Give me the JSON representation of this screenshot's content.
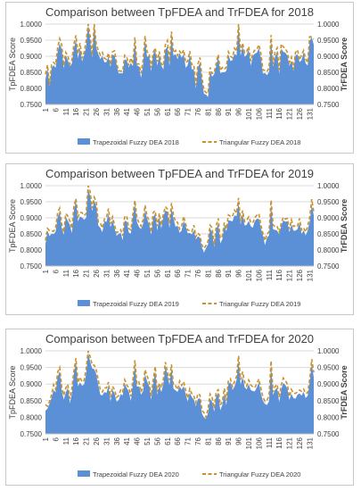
{
  "colors": {
    "trapezoidal": "#5b8fd6",
    "triangular": "#c8922e",
    "axis_text": "#404040",
    "grid": "#d9d9d9",
    "border": "#c8c8c8"
  },
  "chart_data": [
    {
      "type": "area",
      "title": "Comparison between TpFDEA and TrFDEA for 2018",
      "ylabel_left": "TpFDEA Score",
      "ylabel_right": "TrFDEA Score",
      "ylim": [
        0.75,
        1.0
      ],
      "yticks": [
        "1.0000",
        "0.9500",
        "0.9000",
        "0.8500",
        "0.8000",
        "0.7500"
      ],
      "x_ticks": [
        "1",
        "6",
        "11",
        "16",
        "21",
        "26",
        "31",
        "36",
        "41",
        "46",
        "51",
        "56",
        "61",
        "66",
        "71",
        "76",
        "81",
        "86",
        "91",
        "96",
        "101",
        "106",
        "111",
        "116",
        "121",
        "126",
        "131"
      ],
      "x_count": 133,
      "legend_position": "bottom",
      "series": [
        {
          "name": "Trapezoidal Fuzzy DEA 2018",
          "style": "area",
          "values": [
            0.828,
            0.864,
            0.806,
            0.864,
            0.872,
            0.864,
            0.913,
            0.94,
            0.922,
            0.862,
            0.903,
            0.888,
            0.868,
            0.877,
            0.924,
            0.951,
            0.893,
            0.926,
            0.884,
            0.903,
            0.931,
            0.999,
            0.946,
            0.895,
            1.0,
            0.926,
            0.907,
            0.891,
            0.901,
            0.881,
            0.882,
            0.899,
            0.867,
            0.905,
            0.902,
            0.874,
            0.847,
            0.847,
            0.847,
            0.891,
            0.887,
            0.865,
            0.88,
            0.869,
            0.944,
            0.872,
            0.868,
            0.833,
            0.871,
            0.952,
            0.897,
            0.903,
            0.853,
            0.906,
            0.918,
            0.871,
            0.902,
            0.871,
            0.859,
            0.92,
            0.931,
            0.869,
            0.963,
            0.902,
            0.907,
            0.891,
            0.91,
            0.895,
            0.907,
            0.864,
            0.873,
            0.903,
            0.859,
            0.86,
            0.8,
            0.865,
            0.88,
            0.826,
            0.783,
            0.781,
            0.773,
            0.854,
            0.836,
            0.844,
            0.869,
            0.899,
            0.847,
            0.85,
            0.85,
            0.854,
            0.905,
            0.885,
            0.888,
            0.908,
            0.902,
            0.996,
            0.901,
            0.931,
            0.898,
            0.905,
            0.922,
            0.87,
            0.901,
            0.908,
            0.911,
            0.925,
            0.893,
            0.846,
            0.848,
            0.841,
            0.851,
            0.954,
            0.868,
            0.898,
            0.916,
            0.844,
            0.924,
            0.914,
            0.911,
            0.902,
            0.87,
            0.886,
            0.854,
            0.903,
            0.906,
            0.882,
            0.888,
            0.912,
            0.878,
            0.871,
            0.948,
            0.959,
            0.936
          ]
        },
        {
          "name": "Triangular Fuzzy DEA 2018",
          "style": "dashed",
          "values": [
            0.844,
            0.873,
            0.811,
            0.873,
            0.881,
            0.874,
            0.927,
            0.955,
            0.936,
            0.871,
            0.912,
            0.901,
            0.875,
            0.888,
            0.938,
            0.965,
            0.908,
            0.941,
            0.893,
            0.912,
            0.947,
            1.0,
            0.962,
            0.903,
            1.0,
            0.936,
            0.919,
            0.904,
            0.912,
            0.894,
            0.89,
            0.91,
            0.873,
            0.914,
            0.917,
            0.88,
            0.855,
            0.854,
            0.854,
            0.903,
            0.898,
            0.871,
            0.895,
            0.876,
            0.959,
            0.876,
            0.876,
            0.847,
            0.886,
            0.963,
            0.913,
            0.91,
            0.864,
            0.912,
            0.926,
            0.883,
            0.915,
            0.876,
            0.87,
            0.936,
            0.949,
            0.883,
            0.977,
            0.911,
            0.918,
            0.902,
            0.916,
            0.906,
            0.92,
            0.88,
            0.885,
            0.916,
            0.874,
            0.874,
            0.81,
            0.876,
            0.896,
            0.834,
            0.794,
            0.787,
            0.784,
            0.865,
            0.846,
            0.849,
            0.878,
            0.905,
            0.855,
            0.865,
            0.858,
            0.867,
            0.914,
            0.9,
            0.895,
            0.925,
            0.915,
            1.0,
            0.914,
            0.941,
            0.91,
            0.915,
            0.93,
            0.885,
            0.909,
            0.919,
            0.921,
            0.936,
            0.909,
            0.857,
            0.856,
            0.852,
            0.864,
            0.966,
            0.875,
            0.914,
            0.926,
            0.857,
            0.938,
            0.929,
            0.925,
            0.912,
            0.881,
            0.897,
            0.859,
            0.912,
            0.92,
            0.888,
            0.904,
            0.918,
            0.892,
            0.88,
            0.961,
            0.96,
            0.954
          ]
        }
      ]
    },
    {
      "type": "area",
      "title": "Comparison between TpFDEA and TrFDEA for 2019",
      "ylabel_left": "TpFDEA Score",
      "ylabel_right": "TrFDEA Score",
      "ylim": [
        0.75,
        1.0
      ],
      "yticks": [
        "1.0000",
        "0.9500",
        "0.9000",
        "0.8500",
        "0.8000",
        "0.7500"
      ],
      "x_ticks": [
        "1",
        "6",
        "11",
        "16",
        "21",
        "26",
        "31",
        "36",
        "41",
        "46",
        "51",
        "56",
        "61",
        "66",
        "71",
        "76",
        "81",
        "86",
        "91",
        "96",
        "101",
        "106",
        "111",
        "116",
        "121",
        "126",
        "131"
      ],
      "x_count": 133,
      "legend_position": "bottom",
      "series": [
        {
          "name": "Trapezoidal Fuzzy DEA 2019",
          "style": "area",
          "values": [
            0.818,
            0.86,
            0.843,
            0.851,
            0.849,
            0.857,
            0.902,
            0.919,
            0.868,
            0.847,
            0.902,
            0.891,
            0.878,
            0.852,
            0.923,
            0.953,
            0.889,
            0.904,
            0.901,
            0.894,
            0.9,
            0.992,
            0.967,
            0.92,
            0.954,
            0.935,
            0.876,
            0.869,
            0.855,
            0.89,
            0.887,
            0.914,
            0.87,
            0.893,
            0.868,
            0.844,
            0.85,
            0.853,
            0.83,
            0.891,
            0.889,
            0.854,
            0.851,
            0.9,
            0.944,
            0.887,
            0.872,
            0.865,
            0.88,
            0.923,
            0.897,
            0.879,
            0.847,
            0.901,
            0.914,
            0.86,
            0.902,
            0.867,
            0.903,
            0.923,
            0.919,
            0.868,
            0.93,
            0.898,
            0.872,
            0.876,
            0.853,
            0.861,
            0.891,
            0.874,
            0.852,
            0.853,
            0.848,
            0.861,
            0.833,
            0.842,
            0.839,
            0.808,
            0.792,
            0.806,
            0.818,
            0.866,
            0.855,
            0.809,
            0.863,
            0.883,
            0.821,
            0.833,
            0.876,
            0.858,
            0.892,
            0.891,
            0.889,
            0.908,
            0.905,
            0.948,
            0.879,
            0.91,
            0.876,
            0.878,
            0.891,
            0.874,
            0.869,
            0.89,
            0.897,
            0.897,
            0.867,
            0.846,
            0.815,
            0.838,
            0.845,
            0.941,
            0.864,
            0.863,
            0.86,
            0.848,
            0.875,
            0.892,
            0.888,
            0.889,
            0.855,
            0.88,
            0.86,
            0.86,
            0.865,
            0.884,
            0.85,
            0.861,
            0.845,
            0.86,
            0.888,
            0.939,
            0.908
          ]
        },
        {
          "name": "Triangular  Fuzzy DEA 2019",
          "style": "dashed",
          "values": [
            0.83,
            0.867,
            0.86,
            0.86,
            0.858,
            0.869,
            0.916,
            0.93,
            0.881,
            0.855,
            0.913,
            0.906,
            0.89,
            0.867,
            0.936,
            0.96,
            0.903,
            0.917,
            0.916,
            0.907,
            0.913,
            1.0,
            0.982,
            0.93,
            0.964,
            0.95,
            0.886,
            0.884,
            0.868,
            0.896,
            0.901,
            0.929,
            0.881,
            0.903,
            0.878,
            0.854,
            0.857,
            0.863,
            0.844,
            0.905,
            0.905,
            0.867,
            0.862,
            0.909,
            0.954,
            0.9,
            0.885,
            0.874,
            0.893,
            0.939,
            0.905,
            0.891,
            0.855,
            0.917,
            0.922,
            0.874,
            0.914,
            0.877,
            0.912,
            0.935,
            0.927,
            0.883,
            0.946,
            0.91,
            0.887,
            0.886,
            0.865,
            0.875,
            0.905,
            0.88,
            0.862,
            0.86,
            0.857,
            0.877,
            0.841,
            0.853,
            0.845,
            0.815,
            0.805,
            0.814,
            0.828,
            0.877,
            0.869,
            0.816,
            0.875,
            0.898,
            0.836,
            0.843,
            0.885,
            0.865,
            0.909,
            0.905,
            0.904,
            0.924,
            0.914,
            0.962,
            0.888,
            0.923,
            0.888,
            0.892,
            0.903,
            0.886,
            0.884,
            0.901,
            0.908,
            0.913,
            0.877,
            0.852,
            0.829,
            0.85,
            0.856,
            0.955,
            0.878,
            0.872,
            0.873,
            0.856,
            0.883,
            0.902,
            0.896,
            0.898,
            0.865,
            0.894,
            0.873,
            0.876,
            0.874,
            0.898,
            0.862,
            0.869,
            0.856,
            0.873,
            0.902,
            0.958,
            0.918
          ]
        }
      ]
    },
    {
      "type": "area",
      "title": "Comparison between TpFDEA and TrFDEA for 2020",
      "ylabel_left": "TpFDEA Score",
      "ylabel_right": "TrFDEA Score",
      "ylim": [
        0.75,
        1.0
      ],
      "yticks": [
        "1.0000",
        "0.9500",
        "0.9000",
        "0.8500",
        "0.8000",
        "0.7500"
      ],
      "x_ticks": [
        "1",
        "6",
        "11",
        "16",
        "21",
        "26",
        "31",
        "36",
        "41",
        "46",
        "51",
        "56",
        "61",
        "66",
        "71",
        "76",
        "81",
        "86",
        "91",
        "96",
        "101",
        "106",
        "111",
        "116",
        "121",
        "126",
        "131"
      ],
      "x_count": 133,
      "legend_position": "bottom",
      "series": [
        {
          "name": "Trapezoidal Fuzzy DEA 2020",
          "style": "area",
          "values": [
            0.82,
            0.826,
            0.841,
            0.859,
            0.882,
            0.875,
            0.922,
            0.939,
            0.88,
            0.853,
            0.874,
            0.89,
            0.842,
            0.871,
            0.93,
            0.967,
            0.893,
            0.905,
            0.895,
            0.899,
            0.93,
            0.995,
            0.967,
            0.947,
            0.945,
            0.93,
            0.897,
            0.868,
            0.866,
            0.876,
            0.873,
            0.895,
            0.847,
            0.882,
            0.872,
            0.847,
            0.851,
            0.87,
            0.866,
            0.901,
            0.888,
            0.877,
            0.849,
            0.898,
            0.957,
            0.892,
            0.893,
            0.868,
            0.878,
            0.93,
            0.908,
            0.894,
            0.853,
            0.901,
            0.94,
            0.868,
            0.895,
            0.876,
            0.9,
            0.953,
            0.928,
            0.897,
            0.95,
            0.886,
            0.881,
            0.876,
            0.893,
            0.883,
            0.894,
            0.869,
            0.847,
            0.874,
            0.861,
            0.853,
            0.833,
            0.855,
            0.858,
            0.811,
            0.799,
            0.795,
            0.813,
            0.856,
            0.846,
            0.817,
            0.864,
            0.874,
            0.821,
            0.837,
            0.871,
            0.836,
            0.9,
            0.906,
            0.882,
            0.892,
            0.912,
            0.971,
            0.898,
            0.922,
            0.89,
            0.884,
            0.9,
            0.882,
            0.879,
            0.878,
            0.89,
            0.905,
            0.871,
            0.849,
            0.84,
            0.837,
            0.848,
            0.959,
            0.867,
            0.883,
            0.889,
            0.845,
            0.883,
            0.904,
            0.897,
            0.887,
            0.852,
            0.871,
            0.858,
            0.856,
            0.868,
            0.872,
            0.865,
            0.877,
            0.858,
            0.865,
            0.905,
            0.962,
            0.92
          ]
        },
        {
          "name": "Triangular Fuzzy DEA 2020",
          "style": "dashed",
          "values": [
            0.838,
            0.833,
            0.848,
            0.868,
            0.898,
            0.884,
            0.936,
            0.95,
            0.891,
            0.866,
            0.888,
            0.899,
            0.856,
            0.886,
            0.94,
            0.978,
            0.904,
            0.921,
            0.906,
            0.911,
            0.945,
            1.0,
            0.982,
            0.957,
            0.957,
            0.942,
            0.911,
            0.883,
            0.876,
            0.889,
            0.888,
            0.906,
            0.86,
            0.893,
            0.883,
            0.86,
            0.865,
            0.882,
            0.876,
            0.913,
            0.897,
            0.889,
            0.863,
            0.912,
            0.972,
            0.9,
            0.906,
            0.875,
            0.893,
            0.943,
            0.925,
            0.906,
            0.864,
            0.912,
            0.953,
            0.876,
            0.903,
            0.888,
            0.914,
            0.966,
            0.937,
            0.912,
            0.959,
            0.895,
            0.895,
            0.883,
            0.909,
            0.896,
            0.907,
            0.881,
            0.857,
            0.886,
            0.871,
            0.864,
            0.844,
            0.871,
            0.867,
            0.821,
            0.814,
            0.8,
            0.826,
            0.87,
            0.859,
            0.827,
            0.877,
            0.883,
            0.837,
            0.846,
            0.887,
            0.85,
            0.911,
            0.916,
            0.892,
            0.907,
            0.923,
            0.985,
            0.913,
            0.937,
            0.906,
            0.894,
            0.912,
            0.897,
            0.892,
            0.889,
            0.902,
            0.915,
            0.887,
            0.861,
            0.848,
            0.852,
            0.864,
            0.97,
            0.876,
            0.893,
            0.899,
            0.861,
            0.897,
            0.918,
            0.911,
            0.9,
            0.862,
            0.884,
            0.872,
            0.872,
            0.876,
            0.882,
            0.878,
            0.885,
            0.872,
            0.874,
            0.914,
            0.975,
            0.935
          ]
        }
      ]
    }
  ]
}
